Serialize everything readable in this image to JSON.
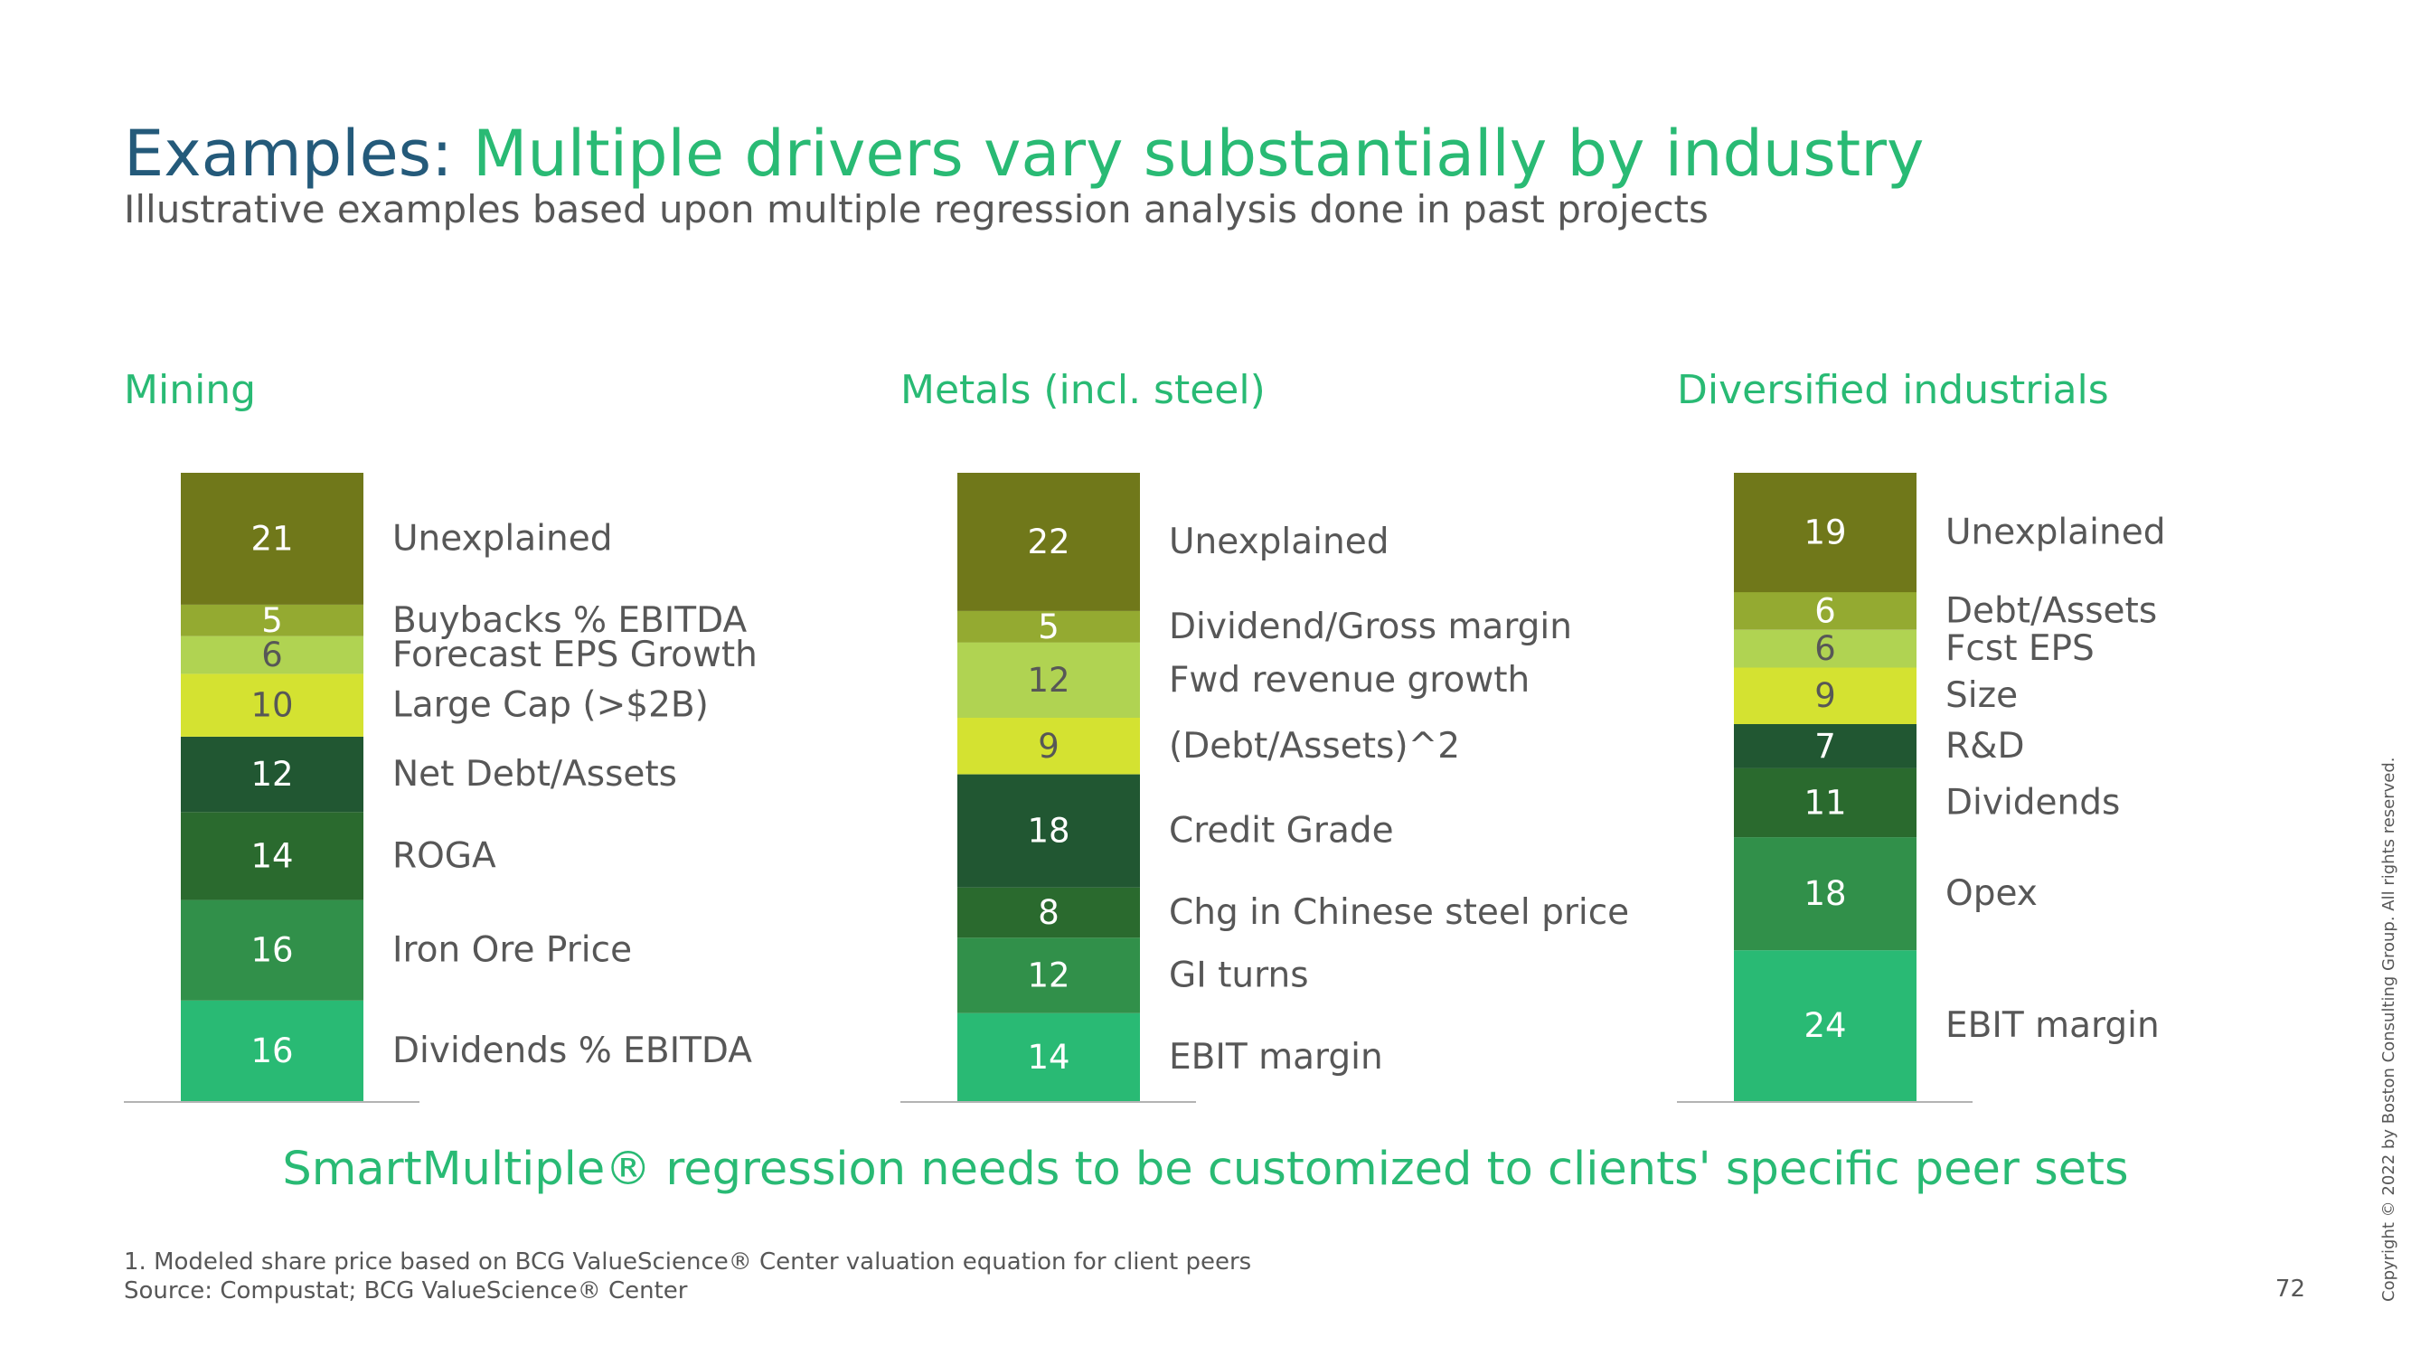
{
  "title": {
    "lead": "Examples:",
    "rest": "Multiple drivers vary substantially by industry"
  },
  "subtitle": "Illustrative examples based upon multiple regression analysis done in past projects",
  "tagline": "SmartMultiple® regression needs to be customized to clients' specific peer sets",
  "footnote": "1. Modeled share price based on BCG ValueScience® Center valuation equation for client peers",
  "source": "Source: Compustat; BCG ValueScience® Center",
  "page_number": "72",
  "copyright": "Copyright © 2022 by Boston Consulting Group. All rights reserved.",
  "colors": {
    "olive_dark": "#70781A",
    "olive": "#94AA31",
    "lime_light": "#B0D352",
    "lime": "#D4E231",
    "green_darkest": "#215732",
    "green_dark": "#2A6A2E",
    "green_mid": "#31904A",
    "green_bright": "#29BA74",
    "title_blue": "#245A7A",
    "accent_green": "#29BA74"
  },
  "chart_data": [
    {
      "type": "bar",
      "stacked": true,
      "title": "Mining",
      "segments": [
        {
          "label": "Dividends % EBITDA",
          "value": 16,
          "color": "#29BA74",
          "text_color": "#ffffff"
        },
        {
          "label": "Iron Ore Price",
          "value": 16,
          "color": "#31904A",
          "text_color": "#ffffff"
        },
        {
          "label": "ROGA",
          "value": 14,
          "color": "#2A6A2E",
          "text_color": "#ffffff"
        },
        {
          "label": "Net Debt/Assets",
          "value": 12,
          "color": "#215732",
          "text_color": "#ffffff"
        },
        {
          "label": "Large Cap (>$2B)",
          "value": 10,
          "color": "#D4E231",
          "text_color": "#575757"
        },
        {
          "label": "Forecast EPS Growth",
          "value": 6,
          "color": "#B0D352",
          "text_color": "#575757"
        },
        {
          "label": "Buybacks % EBITDA",
          "value": 5,
          "color": "#94AA31",
          "text_color": "#ffffff"
        },
        {
          "label": "Unexplained",
          "value": 21,
          "color": "#70781A",
          "text_color": "#ffffff"
        }
      ]
    },
    {
      "type": "bar",
      "stacked": true,
      "title": "Metals (incl. steel)",
      "segments": [
        {
          "label": "EBIT margin",
          "value": 14,
          "color": "#29BA74",
          "text_color": "#ffffff"
        },
        {
          "label": "GI turns",
          "value": 12,
          "color": "#31904A",
          "text_color": "#ffffff"
        },
        {
          "label": "Chg in Chinese steel price",
          "value": 8,
          "color": "#2A6A2E",
          "text_color": "#ffffff"
        },
        {
          "label": "Credit Grade",
          "value": 18,
          "color": "#215732",
          "text_color": "#ffffff"
        },
        {
          "label": "(Debt/Assets)^2",
          "value": 9,
          "color": "#D4E231",
          "text_color": "#575757"
        },
        {
          "label": "Fwd revenue growth",
          "value": 12,
          "color": "#B0D352",
          "text_color": "#575757"
        },
        {
          "label": "Dividend/Gross margin",
          "value": 5,
          "color": "#94AA31",
          "text_color": "#ffffff"
        },
        {
          "label": "Unexplained",
          "value": 22,
          "color": "#70781A",
          "text_color": "#ffffff"
        }
      ]
    },
    {
      "type": "bar",
      "stacked": true,
      "title": "Diversified industrials",
      "segments": [
        {
          "label": "EBIT margin",
          "value": 24,
          "color": "#29BA74",
          "text_color": "#ffffff"
        },
        {
          "label": "Opex",
          "value": 18,
          "color": "#31904A",
          "text_color": "#ffffff"
        },
        {
          "label": "Dividends",
          "value": 11,
          "color": "#2A6A2E",
          "text_color": "#ffffff"
        },
        {
          "label": "R&D",
          "value": 7,
          "color": "#215732",
          "text_color": "#ffffff"
        },
        {
          "label": "Size",
          "value": 9,
          "color": "#D4E231",
          "text_color": "#575757"
        },
        {
          "label": "Fcst EPS",
          "value": 6,
          "color": "#B0D352",
          "text_color": "#575757"
        },
        {
          "label": "Debt/Assets",
          "value": 6,
          "color": "#94AA31",
          "text_color": "#ffffff"
        },
        {
          "label": "Unexplained",
          "value": 19,
          "color": "#70781A",
          "text_color": "#ffffff"
        }
      ]
    }
  ]
}
